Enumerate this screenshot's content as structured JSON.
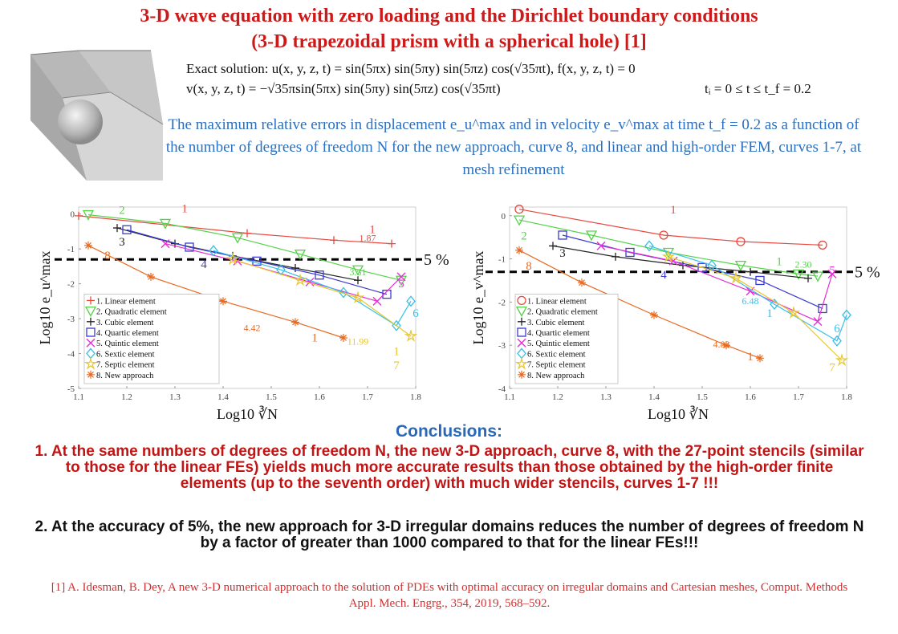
{
  "title": {
    "line1": "3-D wave equation with zero loading and the Dirichlet boundary conditions",
    "line2": "(3-D trapezoidal prism with a spherical hole) [1]"
  },
  "exact": {
    "line1": "Exact solution:  u(x, y, z, t) = sin(5πx) sin(5πy) sin(5πz) cos(√35πt), f(x, y, z, t) = 0",
    "line2": "v(x, y, z, t) = −√35πsin(5πx) sin(5πy) sin(5πz) cos(√35πt)",
    "time": "tᵢ = 0 ≤ t ≤ t_f = 0.2"
  },
  "description": "The maximum relative errors in displacement e_u^max and in velocity e_v^max at time t_f = 0.2 as a function of the number of degrees of freedom N for the new approach, curve 8, and linear and high-order FEM, curves 1-7, at mesh refinement",
  "conclusions": {
    "heading": "Conclusions:",
    "point1": "1. At the same numbers of degrees of freedom N, the new 3-D approach, curve 8, with the 27-point stencils (similar to those for the linear FEs) yields much more accurate results than those obtained by the high-order finite elements (up to the seventh order) with much wider stencils, curves 1-7 !!!",
    "point2": "2.  At the accuracy of 5%, the new approach for 3-D irregular domains reduces the number of degrees of freedom N by a factor of greater than 1000 compared to that for the linear FEs!!!"
  },
  "reference": "[1] A. Idesman, B. Dey, A new 3-D numerical approach to the solution of PDEs with optimal accuracy on irregular domains and Cartesian meshes, Comput. Methods Appl. Mech. Engrg., 354, 2019, 568–592.",
  "colors": {
    "1": "#e8493f",
    "2": "#55d24a",
    "3": "#222222",
    "4": "#3b3bd1",
    "5": "#e52fd6",
    "6": "#38bfe8",
    "7": "#e6c62c",
    "8": "#e86a22"
  },
  "chart_data": [
    {
      "type": "line",
      "xlabel": "Log10 ∛N",
      "ylabel": "Log10 e_u^max",
      "xlim": [
        1.1,
        1.8
      ],
      "ylim": [
        -5,
        0.2
      ],
      "xticks": [
        "1.1",
        "1.2",
        "1.3",
        "1.4",
        "1.5",
        "1.6",
        "1.7",
        "1.8"
      ],
      "yticks": [
        "0",
        "-1",
        "-2",
        "-3",
        "-4",
        "-5"
      ],
      "threshold": {
        "y": -1.3,
        "label": "5 %"
      },
      "legend_position": "bottom-left",
      "series": [
        {
          "name": "1. Linear element",
          "id": "1",
          "marker": "plus",
          "x": [
            1.1,
            1.45,
            1.63,
            1.75
          ],
          "y": [
            -0.05,
            -0.55,
            -0.75,
            -0.85
          ]
        },
        {
          "name": "2. Quadratic element",
          "id": "2",
          "marker": "tri",
          "x": [
            1.12,
            1.28,
            1.43,
            1.56,
            1.68,
            1.77
          ],
          "y": [
            -0.02,
            -0.27,
            -0.68,
            -1.15,
            -1.6,
            -1.9
          ]
        },
        {
          "name": "3. Cubic element",
          "id": "3",
          "marker": "plus",
          "x": [
            1.18,
            1.3,
            1.42,
            1.55,
            1.68
          ],
          "y": [
            -0.4,
            -0.85,
            -1.2,
            -1.55,
            -1.9
          ]
        },
        {
          "name": "4. Quartic element",
          "id": "4",
          "marker": "square",
          "x": [
            1.2,
            1.33,
            1.47,
            1.6,
            1.74
          ],
          "y": [
            -0.45,
            -0.95,
            -1.35,
            -1.75,
            -2.3
          ]
        },
        {
          "name": "5. Quintic element",
          "id": "5",
          "marker": "x",
          "x": [
            1.28,
            1.43,
            1.58,
            1.72,
            1.77
          ],
          "y": [
            -0.85,
            -1.35,
            -1.95,
            -2.5,
            -1.8
          ]
        },
        {
          "name": "6. Sextic element",
          "id": "6",
          "marker": "diamond",
          "x": [
            1.38,
            1.52,
            1.65,
            1.76,
            1.79
          ],
          "y": [
            -1.05,
            -1.6,
            -2.25,
            -3.2,
            -2.5
          ]
        },
        {
          "name": "7. Septic element",
          "id": "7",
          "marker": "star",
          "x": [
            1.42,
            1.56,
            1.68,
            1.79
          ],
          "y": [
            -1.3,
            -1.9,
            -2.4,
            -3.5
          ]
        },
        {
          "name": "8. New approach",
          "id": "8",
          "marker": "asterisk",
          "x": [
            1.12,
            1.25,
            1.4,
            1.55,
            1.65
          ],
          "y": [
            -0.9,
            -1.8,
            -2.5,
            -3.1,
            -3.55
          ]
        }
      ],
      "annotations": [
        {
          "text": "1",
          "x": 1.32,
          "y": 0.05,
          "color": "#e8493f"
        },
        {
          "text": "2",
          "x": 1.19,
          "y": 0.0,
          "color": "#55d24a"
        },
        {
          "text": "3",
          "x": 1.19,
          "y": -0.9,
          "color": "#222222"
        },
        {
          "text": "4",
          "x": 1.36,
          "y": -1.55,
          "color": "#3b3bd1"
        },
        {
          "text": "5",
          "x": 1.77,
          "y": -2.1,
          "color": "#e52fd6"
        },
        {
          "text": "6",
          "x": 1.8,
          "y": -2.95,
          "color": "#38bfe8"
        },
        {
          "text": "7",
          "x": 1.76,
          "y": -4.45,
          "color": "#e6c62c"
        },
        {
          "text": "8",
          "x": 1.16,
          "y": -1.3,
          "color": "#e86a22"
        },
        {
          "text": "1.87",
          "x": 1.7,
          "y": -0.78,
          "color": "#e8493f"
        },
        {
          "text": "3.51",
          "x": 1.68,
          "y": -1.75,
          "color": "#55d24a"
        },
        {
          "text": "4.42",
          "x": 1.46,
          "y": -3.35,
          "color": "#e86a22"
        },
        {
          "text": "11.99",
          "x": 1.68,
          "y": -3.75,
          "color": "#e6c62c"
        },
        {
          "text": "1",
          "x": 1.71,
          "y": -0.55,
          "color": "#e8493f"
        },
        {
          "text": "1",
          "x": 1.59,
          "y": -3.65,
          "color": "#e86a22"
        },
        {
          "text": "1",
          "x": 1.76,
          "y": -4.05,
          "color": "#e6c62c"
        }
      ]
    },
    {
      "type": "line",
      "xlabel": "Log10 ∛N",
      "ylabel": "Log10 e_v^max",
      "xlim": [
        1.1,
        1.8
      ],
      "ylim": [
        -4,
        0.2
      ],
      "xticks": [
        "1.1",
        "1.2",
        "1.3",
        "1.4",
        "1.5",
        "1.6",
        "1.7",
        "1.8"
      ],
      "yticks": [
        "0",
        "-1",
        "-2",
        "-3",
        "-4"
      ],
      "threshold": {
        "y": -1.3,
        "label": "5 %"
      },
      "legend_position": "bottom-left",
      "series": [
        {
          "name": "1. Linear element",
          "id": "1",
          "marker": "circle",
          "x": [
            1.12,
            1.42,
            1.58,
            1.75
          ],
          "y": [
            0.15,
            -0.45,
            -0.6,
            -0.68
          ]
        },
        {
          "name": "2. Quadratic element",
          "id": "2",
          "marker": "tri",
          "x": [
            1.12,
            1.27,
            1.43,
            1.58,
            1.7,
            1.74
          ],
          "y": [
            -0.1,
            -0.45,
            -0.85,
            -1.15,
            -1.35,
            -1.4
          ]
        },
        {
          "name": "3. Cubic element",
          "id": "3",
          "marker": "plus",
          "x": [
            1.19,
            1.32,
            1.46,
            1.6,
            1.72
          ],
          "y": [
            -0.7,
            -0.95,
            -1.15,
            -1.3,
            -1.45
          ]
        },
        {
          "name": "4. Quartic element",
          "id": "4",
          "marker": "square",
          "x": [
            1.21,
            1.35,
            1.5,
            1.62,
            1.75
          ],
          "y": [
            -0.45,
            -0.85,
            -1.2,
            -1.5,
            -2.15
          ]
        },
        {
          "name": "5. Quintic element",
          "id": "5",
          "marker": "x",
          "x": [
            1.29,
            1.44,
            1.6,
            1.74,
            1.77
          ],
          "y": [
            -0.7,
            -1.05,
            -1.75,
            -2.45,
            -1.35
          ]
        },
        {
          "name": "6. Sextic element",
          "id": "6",
          "marker": "diamond",
          "x": [
            1.39,
            1.52,
            1.65,
            1.78,
            1.8
          ],
          "y": [
            -0.7,
            -1.15,
            -2.05,
            -2.9,
            -2.3
          ]
        },
        {
          "name": "7. Septic element",
          "id": "7",
          "marker": "star",
          "x": [
            1.43,
            1.57,
            1.69,
            1.79
          ],
          "y": [
            -0.95,
            -1.45,
            -2.25,
            -3.35
          ]
        },
        {
          "name": "8. New approach",
          "id": "8",
          "marker": "asterisk",
          "x": [
            1.12,
            1.25,
            1.4,
            1.55,
            1.62
          ],
          "y": [
            -0.8,
            -1.55,
            -2.3,
            -3.0,
            -3.3
          ]
        }
      ],
      "annotations": [
        {
          "text": "1",
          "x": 1.44,
          "y": 0.05,
          "color": "#e8493f"
        },
        {
          "text": "2",
          "x": 1.13,
          "y": -0.55,
          "color": "#55d24a"
        },
        {
          "text": "3",
          "x": 1.21,
          "y": -0.95,
          "color": "#222222"
        },
        {
          "text": "4",
          "x": 1.42,
          "y": -1.45,
          "color": "#3b3bd1"
        },
        {
          "text": "5",
          "x": 1.77,
          "y": -1.35,
          "color": "#e52fd6"
        },
        {
          "text": "6",
          "x": 1.78,
          "y": -2.7,
          "color": "#38bfe8"
        },
        {
          "text": "7",
          "x": 1.77,
          "y": -3.6,
          "color": "#e6c62c"
        },
        {
          "text": "8",
          "x": 1.14,
          "y": -1.25,
          "color": "#e86a22"
        },
        {
          "text": "2.30",
          "x": 1.71,
          "y": -1.2,
          "color": "#55d24a"
        },
        {
          "text": "6.48",
          "x": 1.6,
          "y": -2.05,
          "color": "#38bfe8"
        },
        {
          "text": "4.83",
          "x": 1.54,
          "y": -3.05,
          "color": "#e86a22"
        },
        {
          "text": "1",
          "x": 1.66,
          "y": -1.15,
          "color": "#55d24a"
        },
        {
          "text": "1",
          "x": 1.64,
          "y": -2.35,
          "color": "#38bfe8"
        },
        {
          "text": "1",
          "x": 1.6,
          "y": -3.35,
          "color": "#e86a22"
        }
      ]
    }
  ]
}
